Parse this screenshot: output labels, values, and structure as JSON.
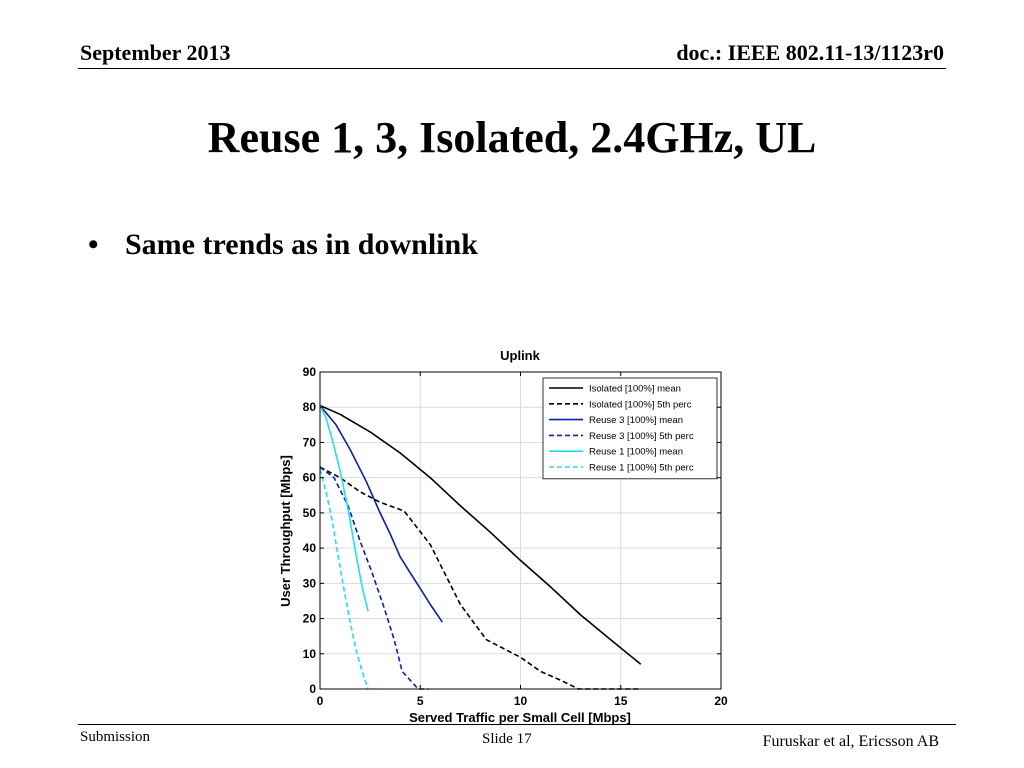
{
  "header": {
    "left": "September 2013",
    "right": "doc.: IEEE 802.11-13/1123r0"
  },
  "title": "Reuse 1, 3, Isolated, 2.4GHz, UL",
  "bullets": [
    {
      "marker": "•",
      "text": "Same trends as in downlink"
    }
  ],
  "footer": {
    "left": "Submission",
    "center": "Slide 17",
    "right": "Furuskar et al, Ericsson AB"
  },
  "colors": {
    "black": "#000000",
    "blue": "#0a1fb3",
    "cyan": "#22e0f0"
  },
  "chart_data": {
    "type": "line",
    "title": "Uplink",
    "xlabel": "Served Traffic per Small Cell [Mbps]",
    "ylabel": "User Throughput [Mbps]",
    "xlim": [
      0,
      20
    ],
    "ylim": [
      0,
      90
    ],
    "xticks": [
      0,
      5,
      10,
      15,
      20
    ],
    "yticks": [
      0,
      10,
      20,
      30,
      40,
      50,
      60,
      70,
      80,
      90
    ],
    "grid": true,
    "legend_position": "top-right",
    "series": [
      {
        "name": "Isolated [100%] mean",
        "color": "#000000",
        "dash": "solid",
        "points": [
          [
            0,
            80.5
          ],
          [
            1,
            78
          ],
          [
            2.5,
            73
          ],
          [
            4,
            67
          ],
          [
            5.5,
            60
          ],
          [
            7,
            52
          ],
          [
            8.5,
            44.5
          ],
          [
            10,
            36.5
          ],
          [
            11.5,
            29
          ],
          [
            13,
            21
          ],
          [
            14.5,
            14
          ],
          [
            16,
            7
          ]
        ]
      },
      {
        "name": "Isolated [100%] 5th perc",
        "color": "#000000",
        "dash": "dashed",
        "points": [
          [
            0,
            63
          ],
          [
            1,
            60
          ],
          [
            2,
            56
          ],
          [
            3,
            53
          ],
          [
            4.2,
            50.5
          ],
          [
            5.5,
            41
          ],
          [
            7,
            24
          ],
          [
            8.3,
            14
          ],
          [
            10,
            9
          ],
          [
            11,
            5
          ],
          [
            12,
            2.5
          ],
          [
            12.9,
            0
          ],
          [
            15,
            0
          ],
          [
            16,
            0
          ]
        ]
      },
      {
        "name": "Reuse 3 [100%] mean",
        "color": "#0a1fb3",
        "dash": "solid",
        "points": [
          [
            0,
            80.5
          ],
          [
            0.8,
            75
          ],
          [
            1.5,
            68
          ],
          [
            2.3,
            59
          ],
          [
            3,
            50
          ],
          [
            3.5,
            44
          ],
          [
            4,
            37.5
          ],
          [
            4.5,
            33
          ],
          [
            5,
            28.5
          ],
          [
            5.5,
            24
          ],
          [
            6.1,
            19
          ]
        ]
      },
      {
        "name": "Reuse 3 [100%] 5th perc",
        "color": "#0a1fb3",
        "dash": "dashed",
        "points": [
          [
            0,
            63
          ],
          [
            0.7,
            60
          ],
          [
            1.4,
            52
          ],
          [
            2,
            42
          ],
          [
            2.6,
            33
          ],
          [
            3.2,
            23
          ],
          [
            3.7,
            14
          ],
          [
            4.1,
            5
          ],
          [
            4.9,
            0
          ],
          [
            5.4,
            0
          ]
        ]
      },
      {
        "name": "Reuse 1 [100%] mean",
        "color": "#22e0f0",
        "dash": "solid",
        "points": [
          [
            0,
            80.5
          ],
          [
            0.3,
            77
          ],
          [
            0.6,
            71
          ],
          [
            1,
            62
          ],
          [
            1.4,
            51
          ],
          [
            1.8,
            38
          ],
          [
            2.1,
            29
          ],
          [
            2.4,
            22
          ]
        ]
      },
      {
        "name": "Reuse 1 [100%] 5th perc",
        "color": "#22e0f0",
        "dash": "dashed",
        "points": [
          [
            0,
            62.5
          ],
          [
            0.3,
            56
          ],
          [
            0.6,
            48
          ],
          [
            0.9,
            38
          ],
          [
            1.2,
            28
          ],
          [
            1.5,
            19
          ],
          [
            1.8,
            11
          ],
          [
            2.1,
            5
          ],
          [
            2.4,
            0
          ]
        ]
      }
    ]
  }
}
